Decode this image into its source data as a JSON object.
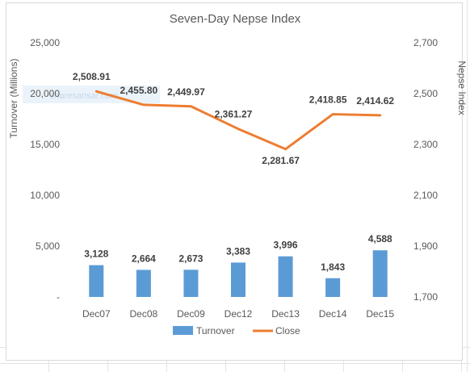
{
  "chart_data": {
    "type": "bar+line",
    "title": "Seven-Day Nepse Index",
    "categories": [
      "Dec07",
      "Dec08",
      "Dec09",
      "Dec12",
      "Dec13",
      "Dec14",
      "Dec15"
    ],
    "series": [
      {
        "name": "Turnover",
        "type": "bar",
        "axis": "left",
        "color": "#5b9bd5",
        "values": [
          3128,
          2664,
          2673,
          3383,
          3996,
          1843,
          4588
        ],
        "labels": [
          "3,128",
          "2,664",
          "2,673",
          "3,383",
          "3,996",
          "1,843",
          "4,588"
        ]
      },
      {
        "name": "Close",
        "type": "line",
        "axis": "right",
        "color": "#ed7d31",
        "values": [
          2508.91,
          2455.8,
          2449.97,
          2361.27,
          2281.67,
          2418.85,
          2414.62
        ],
        "labels": [
          "2,508.91",
          "2,455.80",
          "2,449.97",
          "2,361.27",
          "2,281.67",
          "2,418.85",
          "2,414.62"
        ]
      }
    ],
    "ylabel": "Turnover (Millions)",
    "y2label": "Nepse Index",
    "ylim": [
      0,
      25000
    ],
    "y2lim": [
      1700,
      2700
    ],
    "yticks": [
      "-",
      "5,000",
      "10,000",
      "15,000",
      "20,000",
      "25,000"
    ],
    "y2ticks": [
      "1,700",
      "1,900",
      "2,100",
      "2,300",
      "2,500",
      "2,700"
    ],
    "grid": false,
    "legend": "bottom",
    "watermark": "sharesansar.com"
  }
}
